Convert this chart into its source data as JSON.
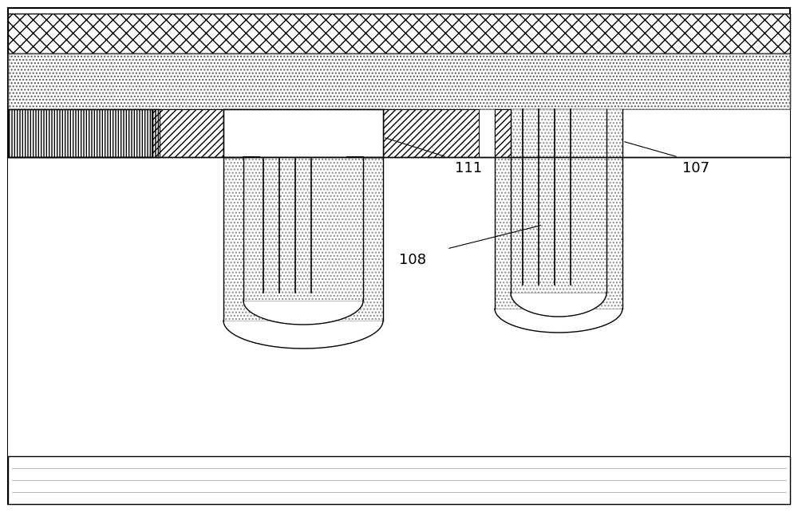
{
  "fig_width": 10.0,
  "fig_height": 6.42,
  "bg_color": "#ffffff",
  "label_111": "111",
  "label_107": "107",
  "label_108": "108",
  "label_fontsize": 13,
  "lw": 1.0
}
